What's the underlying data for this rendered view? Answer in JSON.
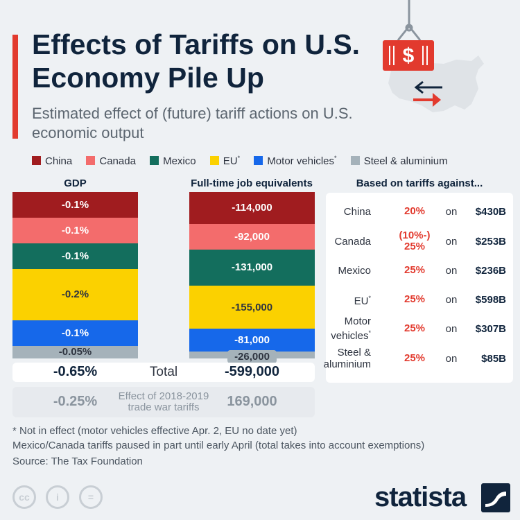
{
  "title": "Effects of Tariffs on U.S. Economy Pile Up",
  "subtitle": "Estimated effect of (future) tariff actions on U.S. economic output",
  "hero": {
    "crate_symbol": "$"
  },
  "legend": [
    {
      "name": "China",
      "color": "#a01c1f",
      "mark": ""
    },
    {
      "name": "Canada",
      "color": "#f36c6c",
      "mark": ""
    },
    {
      "name": "Mexico",
      "color": "#136e5d",
      "mark": ""
    },
    {
      "name": "EU",
      "color": "#fbd100",
      "mark": "*"
    },
    {
      "name": "Motor vehicles",
      "color": "#1668ea",
      "mark": "*"
    },
    {
      "name": "Steel & aluminium",
      "color": "#a5b2ba",
      "mark": ""
    }
  ],
  "chart_data": [
    {
      "type": "bar",
      "title": "GDP",
      "unit": "%",
      "categories": [
        "China",
        "Canada",
        "Mexico",
        "EU",
        "Motor vehicles",
        "Steel & aluminium"
      ],
      "values": [
        -0.1,
        -0.1,
        -0.1,
        -0.2,
        -0.1,
        -0.05
      ],
      "labels": [
        "-0.1%",
        "-0.1%",
        "-0.1%",
        "-0.2%",
        "-0.1%",
        "-0.05%"
      ],
      "total_label": "-0.65%",
      "prior_effect_label": "-0.25%"
    },
    {
      "type": "bar",
      "title": "Full-time job equivalents",
      "unit": "jobs",
      "categories": [
        "China",
        "Canada",
        "Mexico",
        "EU",
        "Motor vehicles",
        "Steel & aluminium"
      ],
      "values": [
        -114000,
        -92000,
        -131000,
        -155000,
        -81000,
        -26000
      ],
      "labels": [
        "-114,000",
        "-92,000",
        "-131,000",
        "-155,000",
        "-81,000",
        "-26,000"
      ],
      "total_label": "-599,000",
      "prior_effect_label": "169,000"
    }
  ],
  "totals": {
    "label": "Total"
  },
  "effect_2018": {
    "label": "Effect of 2018-2019 trade war tariffs"
  },
  "tariffs": {
    "title": "Based on tariffs against...",
    "on_word": "on",
    "rows": [
      {
        "name": "China",
        "mark": "",
        "rate": "20%",
        "amount": "$430B"
      },
      {
        "name": "Canada",
        "mark": "",
        "rate": "(10%-) 25%",
        "amount": "$253B"
      },
      {
        "name": "Mexico",
        "mark": "",
        "rate": "25%",
        "amount": "$236B"
      },
      {
        "name": "EU",
        "mark": "*",
        "rate": "25%",
        "amount": "$598B"
      },
      {
        "name": "Motor vehicles",
        "mark": "*",
        "rate": "25%",
        "amount": "$307B"
      },
      {
        "name": "Steel & aluminium",
        "mark": "",
        "rate": "25%",
        "amount": "$85B"
      }
    ]
  },
  "footnotes": {
    "note1": "* Not in effect (motor vehicles effective Apr. 2, EU no date yet)",
    "note2": "Mexico/Canada tariffs paused in part until early April (total takes into account exemptions)",
    "source": "Source: The Tax Foundation"
  },
  "license_icons": [
    "cc",
    "i",
    "="
  ],
  "brand": "statista",
  "colors": {
    "accent": "#e23a2e",
    "navy": "#10243c",
    "crate": "#e23a2e"
  }
}
